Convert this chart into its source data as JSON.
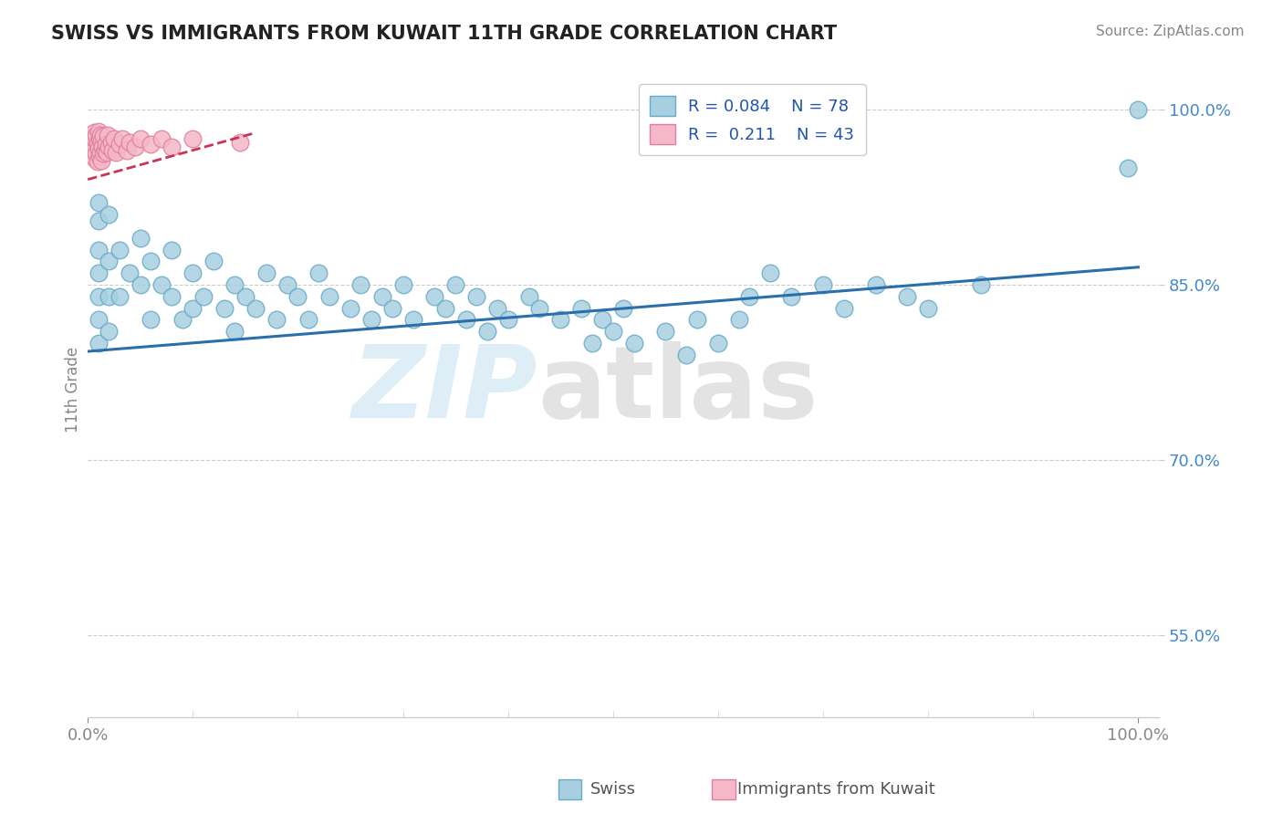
{
  "title": "SWISS VS IMMIGRANTS FROM KUWAIT 11TH GRADE CORRELATION CHART",
  "source": "Source: ZipAtlas.com",
  "ylabel": "11th Grade",
  "blue_color": "#a8cfe0",
  "blue_edge": "#6aaac8",
  "pink_color": "#f5b8c8",
  "pink_edge": "#e080a0",
  "trend_blue": "#2a6faa",
  "trend_pink": "#cc3355",
  "ytick_color": "#4488cc",
  "xtick_color": "#4488cc",
  "watermark_zip_color": "#c8e4f0",
  "watermark_atlas_color": "#c8c8c8",
  "legend_text_color": "#2255aa",
  "swiss_x": [
    0.01,
    0.01,
    0.01,
    0.01,
    0.01,
    0.01,
    0.01,
    0.02,
    0.02,
    0.02,
    0.02,
    0.03,
    0.03,
    0.04,
    0.05,
    0.05,
    0.06,
    0.06,
    0.07,
    0.08,
    0.08,
    0.09,
    0.1,
    0.1,
    0.11,
    0.12,
    0.13,
    0.14,
    0.14,
    0.15,
    0.16,
    0.17,
    0.18,
    0.19,
    0.2,
    0.21,
    0.22,
    0.23,
    0.25,
    0.26,
    0.27,
    0.28,
    0.29,
    0.3,
    0.31,
    0.33,
    0.34,
    0.35,
    0.36,
    0.37,
    0.38,
    0.39,
    0.4,
    0.42,
    0.43,
    0.45,
    0.47,
    0.48,
    0.49,
    0.5,
    0.51,
    0.52,
    0.55,
    0.57,
    0.58,
    0.6,
    0.62,
    0.63,
    0.65,
    0.67,
    0.7,
    0.72,
    0.75,
    0.78,
    0.8,
    0.85,
    0.99,
    1.0
  ],
  "swiss_y": [
    0.905,
    0.92,
    0.88,
    0.86,
    0.84,
    0.82,
    0.8,
    0.91,
    0.87,
    0.84,
    0.81,
    0.88,
    0.84,
    0.86,
    0.89,
    0.85,
    0.87,
    0.82,
    0.85,
    0.88,
    0.84,
    0.82,
    0.86,
    0.83,
    0.84,
    0.87,
    0.83,
    0.85,
    0.81,
    0.84,
    0.83,
    0.86,
    0.82,
    0.85,
    0.84,
    0.82,
    0.86,
    0.84,
    0.83,
    0.85,
    0.82,
    0.84,
    0.83,
    0.85,
    0.82,
    0.84,
    0.83,
    0.85,
    0.82,
    0.84,
    0.81,
    0.83,
    0.82,
    0.84,
    0.83,
    0.82,
    0.83,
    0.8,
    0.82,
    0.81,
    0.83,
    0.8,
    0.81,
    0.79,
    0.82,
    0.8,
    0.82,
    0.84,
    0.86,
    0.84,
    0.85,
    0.83,
    0.85,
    0.84,
    0.83,
    0.85,
    0.95,
    1.0
  ],
  "kuwait_x": [
    0.002,
    0.003,
    0.004,
    0.005,
    0.006,
    0.006,
    0.007,
    0.007,
    0.008,
    0.008,
    0.009,
    0.009,
    0.01,
    0.01,
    0.011,
    0.011,
    0.012,
    0.012,
    0.013,
    0.013,
    0.014,
    0.015,
    0.015,
    0.016,
    0.017,
    0.018,
    0.019,
    0.02,
    0.022,
    0.023,
    0.025,
    0.027,
    0.03,
    0.033,
    0.037,
    0.04,
    0.045,
    0.05,
    0.06,
    0.07,
    0.08,
    0.1,
    0.145
  ],
  "kuwait_y": [
    0.97,
    0.975,
    0.968,
    0.972,
    0.965,
    0.98,
    0.958,
    0.975,
    0.962,
    0.978,
    0.955,
    0.971,
    0.966,
    0.981,
    0.96,
    0.975,
    0.963,
    0.978,
    0.956,
    0.973,
    0.968,
    0.962,
    0.977,
    0.965,
    0.97,
    0.963,
    0.978,
    0.968,
    0.972,
    0.965,
    0.975,
    0.963,
    0.97,
    0.975,
    0.965,
    0.972,
    0.968,
    0.975,
    0.97,
    0.975,
    0.968,
    0.975,
    0.972
  ],
  "blue_trend_x": [
    0.0,
    1.0
  ],
  "blue_trend_y": [
    0.793,
    0.865
  ],
  "pink_trend_x": [
    0.0,
    0.16
  ],
  "pink_trend_y": [
    0.94,
    0.98
  ],
  "yticks": [
    0.55,
    0.7,
    0.85,
    1.0
  ],
  "ytick_labels": [
    "55.0%",
    "70.0%",
    "85.0%",
    "100.0%"
  ],
  "xlim": [
    0.0,
    1.02
  ],
  "ylim": [
    0.48,
    1.04
  ]
}
